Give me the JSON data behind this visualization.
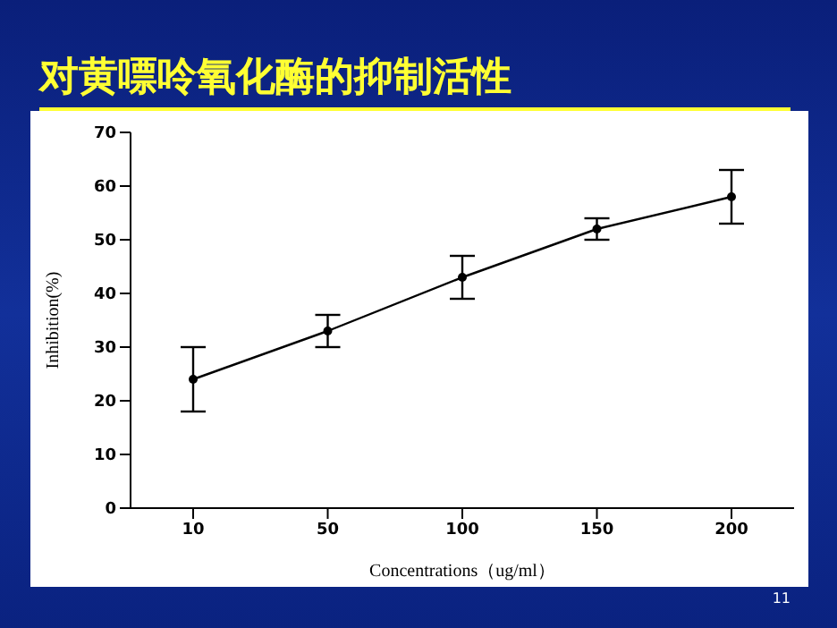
{
  "chart_data": {
    "type": "line",
    "title": "对黄嘌呤氧化酶的抑制活性",
    "xlabel": "Concentrations（ug/ml）",
    "ylabel": "Inhibition(%)",
    "categories": [
      "10",
      "50",
      "100",
      "150",
      "200"
    ],
    "series": [
      {
        "color": "#000000",
        "values": [
          24,
          33,
          43,
          52,
          58
        ],
        "errors": [
          6,
          3,
          4,
          2,
          5
        ]
      }
    ],
    "ylim": [
      0,
      70
    ],
    "yticks": [
      0,
      10,
      20,
      30,
      40,
      50,
      60,
      70
    ],
    "grid": false,
    "legend": false,
    "marker": "circle",
    "line_style": "solid",
    "annotations": [
      "11"
    ]
  }
}
